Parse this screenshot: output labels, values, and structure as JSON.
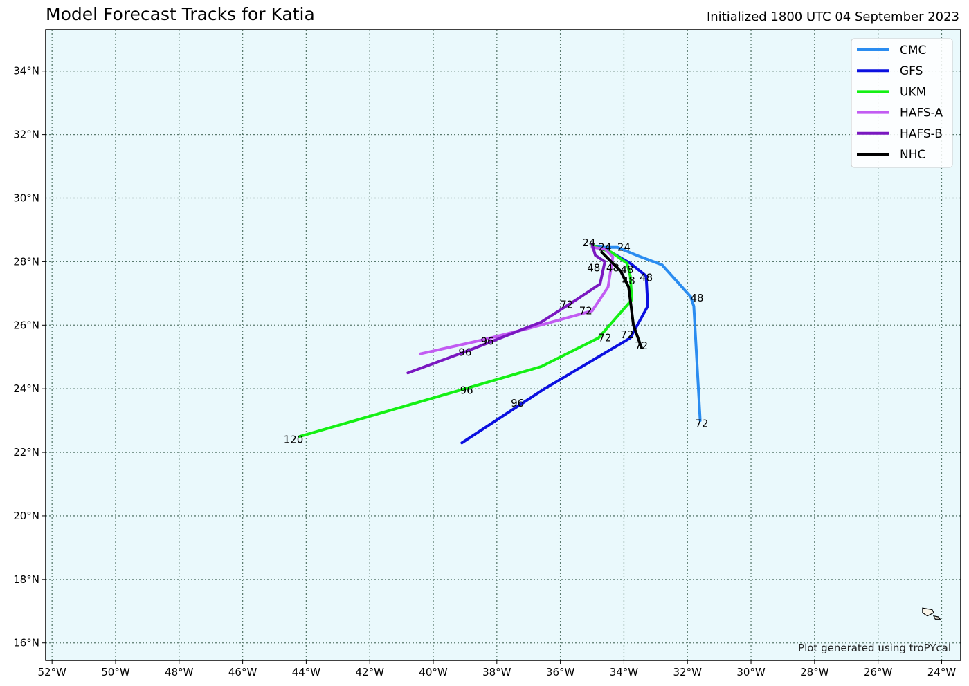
{
  "title": "Model Forecast Tracks for Katia",
  "subtitle": "Initialized 1800 UTC 04 September 2023",
  "credit": "Plot generated using troPYcal",
  "colors": {
    "ocean": "#eaf9fc",
    "grid": "#5a7a6e",
    "land_fill": "#fbf6ea",
    "land_edge": "#000000"
  },
  "chart_data": {
    "type": "map",
    "xlim": [
      -52.2,
      -23.4
    ],
    "ylim": [
      15.45,
      35.3
    ],
    "x_ticks": [
      -52,
      -50,
      -48,
      -46,
      -44,
      -42,
      -40,
      -38,
      -36,
      -34,
      -32,
      -30,
      -28,
      -26,
      -24
    ],
    "x_tick_labels": [
      "52°W",
      "50°W",
      "48°W",
      "46°W",
      "44°W",
      "42°W",
      "40°W",
      "38°W",
      "36°W",
      "34°W",
      "32°W",
      "30°W",
      "28°W",
      "26°W",
      "24°W"
    ],
    "y_ticks": [
      16,
      18,
      20,
      22,
      24,
      26,
      28,
      30,
      32,
      34
    ],
    "y_tick_labels": [
      "16°N",
      "18°N",
      "20°N",
      "22°N",
      "24°N",
      "26°N",
      "28°N",
      "30°N",
      "32°N",
      "34°N"
    ],
    "grid": true,
    "legend_position": "top-right",
    "series": [
      {
        "name": "CMC",
        "color": "#2a8cf0",
        "points": [
          [
            -35.0,
            28.5
          ],
          [
            -34.6,
            28.45
          ],
          [
            -34.2,
            28.45
          ],
          [
            -33.6,
            28.2
          ],
          [
            -32.8,
            27.9
          ],
          [
            -31.9,
            26.9
          ],
          [
            -31.8,
            26.6
          ],
          [
            -31.6,
            23.0
          ]
        ],
        "labels": [
          {
            "text": "24",
            "lon": -34.0,
            "lat": 28.45
          },
          {
            "text": "48",
            "lon": -31.7,
            "lat": 26.85
          },
          {
            "text": "72",
            "lon": -31.55,
            "lat": 22.9
          }
        ]
      },
      {
        "name": "GFS",
        "color": "#0b10e0",
        "points": [
          [
            -35.0,
            28.5
          ],
          [
            -34.5,
            28.35
          ],
          [
            -33.8,
            27.95
          ],
          [
            -33.3,
            27.55
          ],
          [
            -33.25,
            26.6
          ],
          [
            -33.8,
            25.6
          ],
          [
            -36.5,
            24.0
          ],
          [
            -39.1,
            22.3
          ]
        ],
        "labels": [
          {
            "text": "48",
            "lon": -33.3,
            "lat": 27.5
          },
          {
            "text": "72",
            "lon": -33.9,
            "lat": 25.7
          },
          {
            "text": "96",
            "lon": -37.35,
            "lat": 23.55
          }
        ]
      },
      {
        "name": "UKM",
        "color": "#14f014",
        "points": [
          [
            -35.0,
            28.5
          ],
          [
            -34.4,
            28.3
          ],
          [
            -33.9,
            27.95
          ],
          [
            -33.8,
            27.55
          ],
          [
            -33.75,
            26.8
          ],
          [
            -34.8,
            25.6
          ],
          [
            -36.6,
            24.7
          ],
          [
            -39.0,
            24.0
          ],
          [
            -44.2,
            22.5
          ]
        ],
        "labels": [
          {
            "text": "48",
            "lon": -33.9,
            "lat": 27.75
          },
          {
            "text": "72",
            "lon": -34.6,
            "lat": 25.6
          },
          {
            "text": "96",
            "lon": -38.95,
            "lat": 23.95
          },
          {
            "text": "120",
            "lon": -44.4,
            "lat": 22.4
          }
        ]
      },
      {
        "name": "HAFS-A",
        "color": "#c25cf2",
        "points": [
          [
            -35.0,
            28.45
          ],
          [
            -34.6,
            28.4
          ],
          [
            -34.35,
            28.15
          ],
          [
            -34.5,
            27.2
          ],
          [
            -35.0,
            26.45
          ],
          [
            -37.0,
            25.9
          ],
          [
            -38.4,
            25.55
          ],
          [
            -40.4,
            25.1
          ]
        ],
        "labels": [
          {
            "text": "48",
            "lon": -34.35,
            "lat": 27.8
          },
          {
            "text": "72",
            "lon": -35.2,
            "lat": 26.45
          },
          {
            "text": "96",
            "lon": -38.3,
            "lat": 25.5
          }
        ]
      },
      {
        "name": "HAFS-B",
        "color": "#7a18c0",
        "points": [
          [
            -35.0,
            28.55
          ],
          [
            -34.9,
            28.2
          ],
          [
            -34.6,
            28.0
          ],
          [
            -34.75,
            27.3
          ],
          [
            -35.5,
            26.8
          ],
          [
            -36.6,
            26.1
          ],
          [
            -38.9,
            25.2
          ],
          [
            -40.8,
            24.5
          ]
        ],
        "labels": [
          {
            "text": "24",
            "lon": -35.1,
            "lat": 28.6
          },
          {
            "text": "48",
            "lon": -34.95,
            "lat": 27.8
          },
          {
            "text": "72",
            "lon": -35.8,
            "lat": 26.65
          },
          {
            "text": "96",
            "lon": -39.0,
            "lat": 25.15
          }
        ]
      },
      {
        "name": "NHC",
        "color": "#000000",
        "points": [
          [
            -34.7,
            28.3
          ],
          [
            -34.5,
            28.1
          ],
          [
            -34.1,
            27.7
          ],
          [
            -33.85,
            27.2
          ],
          [
            -33.7,
            26.0
          ],
          [
            -33.45,
            25.3
          ]
        ],
        "labels": [
          {
            "text": "24",
            "lon": -34.6,
            "lat": 28.45
          },
          {
            "text": "48",
            "lon": -33.85,
            "lat": 27.4
          },
          {
            "text": "72",
            "lon": -33.45,
            "lat": 25.35
          }
        ]
      }
    ]
  }
}
